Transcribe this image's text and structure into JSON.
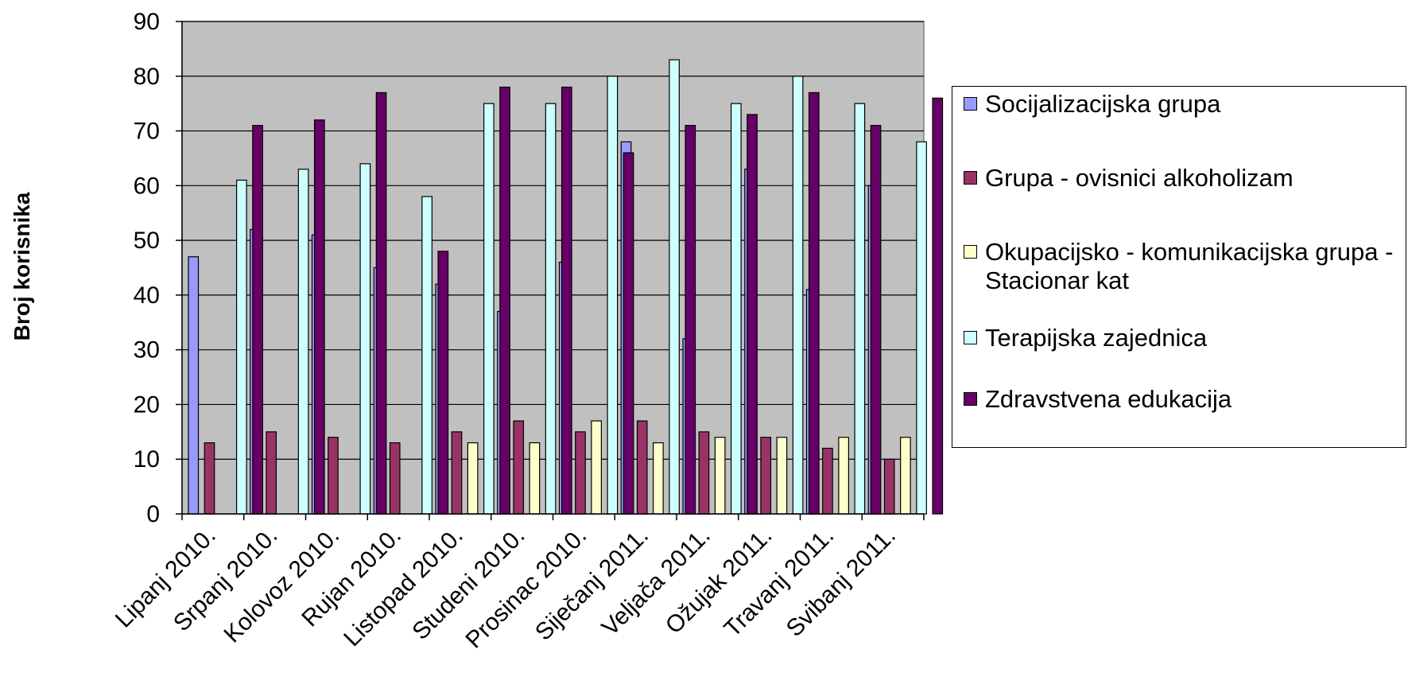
{
  "chart_data": {
    "type": "bar",
    "title": "",
    "xlabel": "",
    "ylabel": "Broj korisnika",
    "ylim": [
      0,
      90
    ],
    "yticks": [
      0,
      10,
      20,
      30,
      40,
      50,
      60,
      70,
      80,
      90
    ],
    "grid": true,
    "legend_position": "right",
    "plot_background": "#c0c0c0",
    "categories": [
      "Lipanj 2010.",
      "Srpanj 2010.",
      "Kolovoz 2010.",
      "Rujan 2010.",
      "Listopad 2010.",
      "Studeni 2010.",
      "Prosinac 2010.",
      "Siječanj 2011.",
      "Veljača 2011.",
      "Ožujak 2011.",
      "Travanj 2011.",
      "Svibanj 2011."
    ],
    "series": [
      {
        "name": "Socijalizacijska grupa",
        "color": "#9999ff",
        "values": [
          47,
          52,
          51,
          45,
          42,
          37,
          46,
          68,
          32,
          63,
          41,
          60
        ]
      },
      {
        "name": "Grupa - ovisnici alkoholizam",
        "color": "#993366",
        "values": [
          13,
          15,
          14,
          13,
          15,
          17,
          15,
          17,
          15,
          14,
          12,
          10
        ]
      },
      {
        "name": "Okupacijsko - komunikacijska grupa - Stacionar kat",
        "color": "#ffffcc",
        "values": [
          null,
          null,
          null,
          null,
          13,
          13,
          17,
          13,
          14,
          14,
          14,
          14
        ]
      },
      {
        "name": "Terapijska zajednica",
        "color": "#ccffff",
        "values": [
          61,
          63,
          64,
          58,
          75,
          75,
          80,
          83,
          75,
          80,
          75,
          68
        ]
      },
      {
        "name": "Zdravstvena edukacija",
        "color": "#660066",
        "values": [
          71,
          72,
          77,
          48,
          78,
          78,
          66,
          71,
          73,
          77,
          71,
          76
        ]
      }
    ]
  }
}
